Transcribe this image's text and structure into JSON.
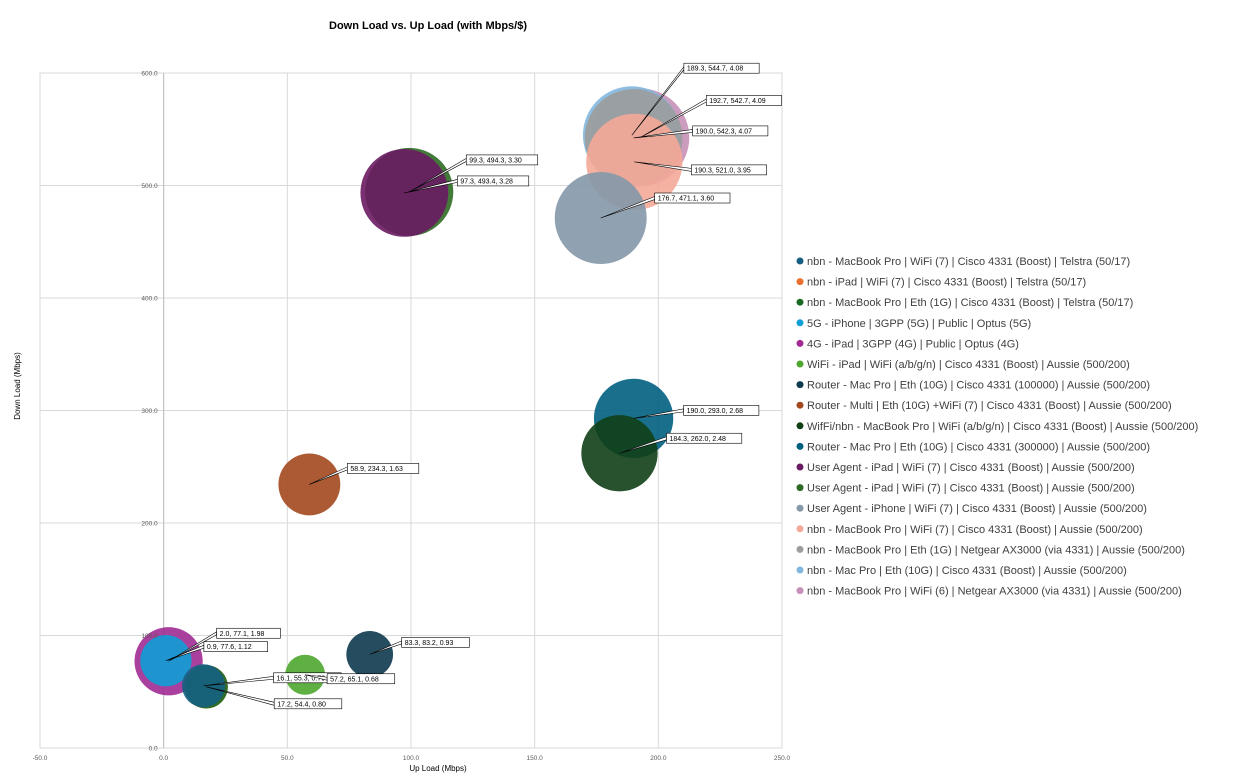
{
  "chart_data": {
    "type": "bubble",
    "title": "Down Load vs. Up Load (with Mbps/$)",
    "xlabel": "Up Load (Mbps)",
    "ylabel": "Down Load (Mbps)",
    "xlim": [
      -50,
      250
    ],
    "ylim": [
      0,
      600
    ],
    "xticks": [
      -50,
      0,
      50,
      100,
      150,
      200,
      250
    ],
    "yticks": [
      0,
      100,
      200,
      300,
      400,
      500,
      600
    ],
    "xtick_labels": [
      "-50.0",
      "0.0",
      "50.0",
      "100.0",
      "150.0",
      "200.0",
      "250.0"
    ],
    "ytick_labels": [
      "0.0",
      "100.0",
      "200.0",
      "300.0",
      "400.0",
      "500.0",
      "600.0"
    ],
    "grid": true,
    "legend_position": "right",
    "series": [
      {
        "name": "nbn - MacBook Pro | WiFi (7) | Cisco 4331 (Boost) | Telstra (50/17)",
        "color": "#156082",
        "x": 16.1,
        "y": 55.3,
        "size": 0.79,
        "label": "16.1, 55.3, 0.79"
      },
      {
        "name": "nbn - iPad | WiFi (7) | Cisco 4331 (Boost) | Telstra (50/17)",
        "color": "#E97132",
        "x": 17.2,
        "y": 54.4,
        "size": 0.8,
        "label": "17.2, 54.4, 0.80"
      },
      {
        "name": "nbn - MacBook Pro | Eth (1G) | Cisco 4331 (Boost) | Telstra (50/17)",
        "color": "#196B24",
        "x": 17.2,
        "y": 54.4,
        "size": 0.8,
        "label": ""
      },
      {
        "name": "5G - iPhone | 3GPP (5G) | Public | Optus (5G)",
        "color": "#0F9ED5",
        "x": 0.9,
        "y": 77.6,
        "size": 1.12,
        "label": "0.9, 77.6, 1.12"
      },
      {
        "name": "4G - iPad | 3GPP (4G) | Public | Optus (4G)",
        "color": "#A02B93",
        "x": 2.0,
        "y": 77.1,
        "size": 1.98,
        "label": "2.0, 77.1, 1.98"
      },
      {
        "name": "WiFi - iPad | WiFi (a/b/g/n) | Cisco 4331 (Boost) | Aussie (500/200)",
        "color": "#4EA72E",
        "x": 57.2,
        "y": 65.1,
        "size": 0.68,
        "label": "57.2, 65.1, 0.68"
      },
      {
        "name": "Router - Mac Pro | Eth (10G) | Cisco 4331 (100000) | Aussie (500/200)",
        "color": "#0E3A4E",
        "x": 83.3,
        "y": 83.2,
        "size": 0.93,
        "label": "83.3, 83.2, 0.93"
      },
      {
        "name": "Router - Multi | Eth (10G) +WiFi (7) | Cisco 4331 (Boost) | Aussie (500/200)",
        "color": "#A3481E",
        "x": 58.9,
        "y": 234.3,
        "size": 1.63,
        "label": "58.9, 234.3, 1.63"
      },
      {
        "name": "WifFi/nbn - MacBook Pro | WiFi (a/b/g/n) | Cisco 4331 (Boost) | Aussie (500/200)",
        "color": "#103F16",
        "x": 184.3,
        "y": 262.0,
        "size": 2.48,
        "label": "184.3, 262.0, 2.48"
      },
      {
        "name": "Router - Mac Pro | Eth (10G) | Cisco 4331 (300000) | Aussie (500/200)",
        "color": "#005F80",
        "x": 190.0,
        "y": 293.0,
        "size": 2.68,
        "label": "190.0, 293.0, 2.68"
      },
      {
        "name": "User Agent - iPad | WiFi (7) | Cisco 4331 (Boost) | Aussie (500/200)",
        "color": "#6A1B63",
        "x": 97.3,
        "y": 493.4,
        "size": 3.28,
        "label": "97.3, 493.4, 3.28"
      },
      {
        "name": "User Agent - iPad | WiFi (7) | Cisco 4331 (Boost) | Aussie (500/200)",
        "color": "#2F6A23",
        "x": 99.3,
        "y": 494.3,
        "size": 3.3,
        "label": "99.3, 494.3, 3.30"
      },
      {
        "name": "User Agent - iPhone | WiFi (7) | Cisco 4331 (Boost) | Aussie (500/200)",
        "color": "#8498A8",
        "x": 176.7,
        "y": 471.1,
        "size": 3.6,
        "label": "176.7, 471.1, 3.60"
      },
      {
        "name": "nbn - MacBook Pro | WiFi (7) | Cisco 4331 (Boost) | Aussie (500/200)",
        "color": "#F4A898",
        "x": 190.3,
        "y": 521.0,
        "size": 3.95,
        "label": "190.3, 521.0, 3.95"
      },
      {
        "name": "nbn - MacBook Pro | Eth (1G) | Netgear AX3000 (via 4331) | Aussie (500/200)",
        "color": "#9C9C9C",
        "x": 190.0,
        "y": 542.3,
        "size": 4.07,
        "label": "190.0, 542.3, 4.07"
      },
      {
        "name": "nbn - Mac Pro | Eth (10G) | Cisco 4331 (Boost) | Aussie (500/200)",
        "color": "#82B7DE",
        "x": 189.3,
        "y": 544.7,
        "size": 4.08,
        "label": "189.3, 544.7, 4.08"
      },
      {
        "name": "nbn - MacBook Pro | WiFi (6) | Netgear AX3000 (via 4331) | Aussie (500/200)",
        "color": "#C691B8",
        "x": 192.7,
        "y": 542.7,
        "size": 4.09,
        "label": "192.7, 542.7, 4.09"
      }
    ]
  }
}
